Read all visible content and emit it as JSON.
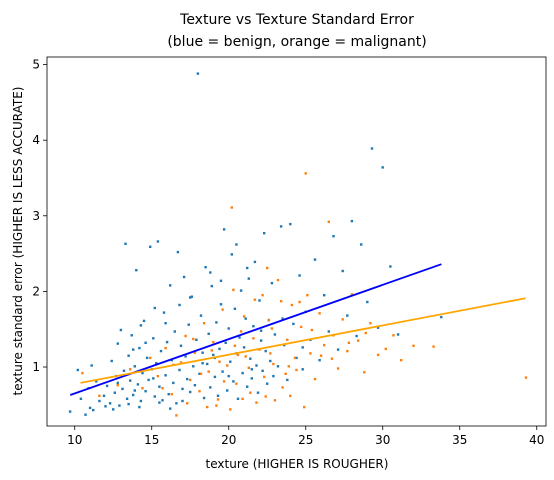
{
  "chart_data": {
    "type": "scatter",
    "title": [
      "Texture vs Texture Standard Error",
      "(blue = benign, orange = malignant)"
    ],
    "xlabel": "texture (HIGHER IS ROUGHER)",
    "ylabel": "texture standard error (HIGHER IS LESS ACCURATE)",
    "xlim": [
      8.2,
      40.6
    ],
    "ylim": [
      0.22,
      5.1
    ],
    "xticks": [
      10,
      15,
      20,
      25,
      30,
      35,
      40
    ],
    "yticks": [
      1,
      2,
      3,
      4,
      5
    ],
    "grid": false,
    "legend": "none",
    "series": [
      {
        "color": "#1f77b4",
        "points": [
          [
            9.7,
            0.41
          ],
          [
            10.4,
            0.58
          ],
          [
            10.7,
            0.37
          ],
          [
            10.9,
            0.72
          ],
          [
            11.1,
            1.02
          ],
          [
            11.2,
            0.43
          ],
          [
            11.4,
            0.81
          ],
          [
            11.6,
            0.55
          ],
          [
            11.9,
            0.62
          ],
          [
            12.1,
            0.75
          ],
          [
            12.3,
            0.52
          ],
          [
            12.4,
            1.08
          ],
          [
            12.6,
            0.66
          ],
          [
            12.7,
            0.88
          ],
          [
            12.8,
            1.31
          ],
          [
            12.9,
            0.49
          ],
          [
            13.0,
            1.49
          ],
          [
            13.1,
            0.71
          ],
          [
            13.2,
            0.95
          ],
          [
            13.3,
            2.63
          ],
          [
            13.4,
            0.58
          ],
          [
            13.5,
            1.15
          ],
          [
            13.6,
            0.82
          ],
          [
            13.7,
            1.42
          ],
          [
            13.8,
            0.63
          ],
          [
            13.9,
            1.01
          ],
          [
            14.0,
            2.28
          ],
          [
            14.1,
            0.77
          ],
          [
            14.2,
            1.25
          ],
          [
            14.3,
            0.55
          ],
          [
            14.4,
            0.92
          ],
          [
            14.5,
            1.61
          ],
          [
            14.6,
            0.68
          ],
          [
            14.7,
            1.12
          ],
          [
            14.8,
            0.83
          ],
          [
            14.9,
            2.59
          ],
          [
            15.0,
            0.97
          ],
          [
            15.1,
            1.38
          ],
          [
            15.2,
            0.61
          ],
          [
            15.3,
            1.05
          ],
          [
            15.4,
            2.66
          ],
          [
            15.5,
            0.74
          ],
          [
            15.6,
            1.21
          ],
          [
            15.7,
            0.56
          ],
          [
            15.8,
            1.72
          ],
          [
            15.9,
            0.89
          ],
          [
            16.0,
            1.33
          ],
          [
            16.1,
            0.64
          ],
          [
            16.2,
            2.08
          ],
          [
            16.3,
            1.09
          ],
          [
            16.4,
            0.79
          ],
          [
            16.5,
            1.47
          ],
          [
            16.6,
            0.52
          ],
          [
            16.7,
            2.52
          ],
          [
            16.8,
            0.96
          ],
          [
            16.9,
            1.28
          ],
          [
            17.0,
            0.71
          ],
          [
            17.1,
            2.19
          ],
          [
            17.2,
            1.14
          ],
          [
            17.3,
            0.84
          ],
          [
            17.4,
            1.56
          ],
          [
            17.5,
            0.67
          ],
          [
            17.6,
            1.93
          ],
          [
            17.7,
            1.01
          ],
          [
            17.8,
            0.76
          ],
          [
            17.9,
            1.36
          ],
          [
            18.0,
            4.88
          ],
          [
            18.1,
            0.91
          ],
          [
            18.2,
            1.68
          ],
          [
            18.3,
            1.19
          ],
          [
            18.4,
            0.59
          ],
          [
            18.5,
            2.32
          ],
          [
            18.6,
            1.04
          ],
          [
            18.7,
            1.44
          ],
          [
            18.8,
            0.73
          ],
          [
            18.9,
            2.07
          ],
          [
            19.0,
            1.16
          ],
          [
            19.1,
            0.87
          ],
          [
            19.2,
            1.59
          ],
          [
            19.3,
            0.62
          ],
          [
            19.4,
            1.24
          ],
          [
            19.5,
            1.83
          ],
          [
            19.6,
            0.94
          ],
          [
            19.7,
            2.82
          ],
          [
            19.8,
            1.32
          ],
          [
            19.9,
            0.69
          ],
          [
            20.0,
            1.51
          ],
          [
            20.1,
            1.07
          ],
          [
            20.2,
            2.49
          ],
          [
            20.3,
            0.81
          ],
          [
            20.4,
            1.77
          ],
          [
            20.5,
            1.18
          ],
          [
            20.6,
            0.58
          ],
          [
            20.7,
            1.39
          ],
          [
            20.8,
            2.01
          ],
          [
            20.9,
            0.92
          ],
          [
            21.0,
            1.26
          ],
          [
            21.1,
            1.64
          ],
          [
            21.2,
            0.74
          ],
          [
            21.3,
            2.17
          ],
          [
            21.4,
            1.11
          ],
          [
            21.5,
            0.85
          ],
          [
            21.6,
            1.54
          ],
          [
            21.7,
            2.39
          ],
          [
            21.8,
            1.02
          ],
          [
            21.9,
            0.66
          ],
          [
            22.0,
            1.88
          ],
          [
            22.1,
            1.35
          ],
          [
            22.2,
            0.95
          ],
          [
            22.3,
            2.77
          ],
          [
            22.4,
            1.21
          ],
          [
            22.5,
            0.78
          ],
          [
            22.6,
            1.62
          ],
          [
            22.7,
            1.08
          ],
          [
            22.8,
            2.11
          ],
          [
            22.9,
            0.88
          ],
          [
            23.0,
            1.43
          ],
          [
            23.2,
            1.01
          ],
          [
            23.4,
            2.86
          ],
          [
            23.6,
            1.29
          ],
          [
            23.8,
            0.83
          ],
          [
            24.0,
            2.89
          ],
          [
            24.2,
            1.57
          ],
          [
            24.4,
            1.12
          ],
          [
            24.6,
            2.21
          ],
          [
            24.8,
            0.97
          ],
          [
            25.0,
            1.73
          ],
          [
            25.3,
            1.36
          ],
          [
            25.6,
            2.42
          ],
          [
            25.9,
            1.09
          ],
          [
            26.2,
            1.95
          ],
          [
            26.5,
            1.47
          ],
          [
            26.8,
            2.73
          ],
          [
            27.1,
            1.23
          ],
          [
            27.4,
            2.27
          ],
          [
            27.7,
            1.68
          ],
          [
            28.0,
            2.93
          ],
          [
            28.3,
            1.41
          ],
          [
            28.6,
            2.62
          ],
          [
            29.0,
            1.86
          ],
          [
            29.3,
            3.89
          ],
          [
            29.7,
            1.52
          ],
          [
            30.0,
            3.64
          ],
          [
            30.5,
            2.33
          ],
          [
            31.0,
            1.43
          ],
          [
            33.8,
            1.66
          ],
          [
            10.2,
            0.96
          ],
          [
            11.0,
            0.46
          ],
          [
            12.0,
            0.48
          ],
          [
            12.5,
            0.44
          ],
          [
            13.5,
            0.51
          ],
          [
            14.2,
            0.47
          ],
          [
            15.5,
            0.53
          ],
          [
            16.2,
            0.45
          ],
          [
            17.0,
            0.55
          ],
          [
            13.8,
            1.23
          ],
          [
            14.6,
            1.32
          ],
          [
            15.9,
            1.58
          ],
          [
            16.8,
            1.82
          ],
          [
            17.5,
            1.92
          ],
          [
            18.8,
            2.25
          ],
          [
            19.5,
            2.14
          ],
          [
            20.5,
            2.62
          ],
          [
            21.2,
            2.31
          ],
          [
            15.2,
            1.78
          ],
          [
            14.3,
            1.55
          ],
          [
            18.3,
            1.05
          ],
          [
            19.1,
            1.12
          ],
          [
            20.0,
            0.88
          ],
          [
            21.5,
            0.97
          ],
          [
            22.1,
            1.48
          ],
          [
            23.5,
            1.64
          ],
          [
            24.8,
            1.26
          ],
          [
            12.8,
            0.79
          ],
          [
            13.9,
            0.69
          ],
          [
            15.1,
            0.85
          ]
        ]
      },
      {
        "color": "#ff7f0e",
        "points": [
          [
            10.5,
            0.92
          ],
          [
            11.6,
            0.62
          ],
          [
            12.8,
            0.76
          ],
          [
            13.6,
            0.97
          ],
          [
            14.4,
            0.72
          ],
          [
            14.9,
            1.12
          ],
          [
            15.4,
            0.88
          ],
          [
            15.9,
            1.25
          ],
          [
            16.3,
            0.64
          ],
          [
            16.6,
            0.36
          ],
          [
            16.9,
            1.06
          ],
          [
            17.2,
            1.41
          ],
          [
            17.5,
            0.83
          ],
          [
            17.8,
            1.19
          ],
          [
            18.1,
            0.68
          ],
          [
            18.4,
            1.58
          ],
          [
            18.7,
            0.94
          ],
          [
            19.0,
            1.33
          ],
          [
            19.3,
            0.57
          ],
          [
            19.6,
            1.76
          ],
          [
            19.9,
            1.02
          ],
          [
            20.2,
            3.11
          ],
          [
            20.5,
            0.78
          ],
          [
            20.8,
            1.47
          ],
          [
            21.1,
            1.14
          ],
          [
            21.4,
            0.66
          ],
          [
            21.7,
            1.89
          ],
          [
            22.0,
            1.23
          ],
          [
            22.3,
            0.87
          ],
          [
            22.6,
            1.62
          ],
          [
            22.9,
            1.04
          ],
          [
            23.2,
            2.15
          ],
          [
            23.5,
            0.73
          ],
          [
            23.8,
            1.36
          ],
          [
            24.1,
            1.82
          ],
          [
            24.4,
            0.96
          ],
          [
            24.7,
            1.53
          ],
          [
            25.0,
            3.56
          ],
          [
            25.3,
            1.18
          ],
          [
            25.6,
            0.84
          ],
          [
            25.9,
            1.71
          ],
          [
            26.2,
            1.29
          ],
          [
            26.5,
            2.92
          ],
          [
            26.8,
            1.42
          ],
          [
            27.1,
            0.98
          ],
          [
            27.4,
            1.63
          ],
          [
            27.7,
            1.21
          ],
          [
            28.0,
            1.96
          ],
          [
            28.4,
            1.35
          ],
          [
            28.8,
            0.93
          ],
          [
            29.2,
            1.58
          ],
          [
            29.7,
            1.16
          ],
          [
            30.2,
            1.24
          ],
          [
            30.7,
            1.42
          ],
          [
            31.2,
            1.09
          ],
          [
            32.0,
            1.28
          ],
          [
            33.3,
            1.27
          ],
          [
            39.3,
            0.86
          ],
          [
            17.3,
            0.52
          ],
          [
            18.6,
            0.47
          ],
          [
            19.2,
            0.49
          ],
          [
            20.1,
            0.44
          ],
          [
            20.9,
            0.58
          ],
          [
            21.8,
            0.53
          ],
          [
            22.4,
            0.61
          ],
          [
            23.0,
            0.56
          ],
          [
            24.0,
            0.62
          ],
          [
            24.9,
            0.47
          ],
          [
            21.0,
            1.67
          ],
          [
            22.2,
            1.95
          ],
          [
            23.4,
            1.87
          ],
          [
            20.4,
            1.28
          ],
          [
            19.4,
            1.07
          ],
          [
            18.9,
            1.22
          ],
          [
            21.6,
            1.38
          ],
          [
            22.8,
            1.51
          ],
          [
            24.3,
            1.12
          ],
          [
            25.4,
            1.49
          ],
          [
            26.0,
            1.15
          ],
          [
            23.7,
            0.91
          ],
          [
            21.3,
            0.99
          ],
          [
            20.6,
            1.16
          ],
          [
            19.7,
            0.81
          ],
          [
            18.2,
            0.91
          ],
          [
            17.7,
            1.37
          ],
          [
            16.4,
            1.03
          ],
          [
            15.7,
            0.72
          ],
          [
            25.1,
            1.95
          ],
          [
            24.6,
            1.86
          ],
          [
            27.8,
            1.32
          ],
          [
            26.7,
            1.11
          ],
          [
            28.9,
            1.45
          ],
          [
            22.5,
            2.31
          ],
          [
            23.9,
            1.01
          ],
          [
            22.7,
            1.18
          ],
          [
            20.3,
            2.02
          ]
        ]
      }
    ],
    "fit_lines": [
      {
        "color": "#0000ff",
        "from": [
          9.71,
          0.63
        ],
        "to": [
          33.81,
          2.36
        ]
      },
      {
        "color": "#ffa500",
        "from": [
          10.38,
          0.79
        ],
        "to": [
          39.28,
          1.91
        ]
      }
    ]
  }
}
